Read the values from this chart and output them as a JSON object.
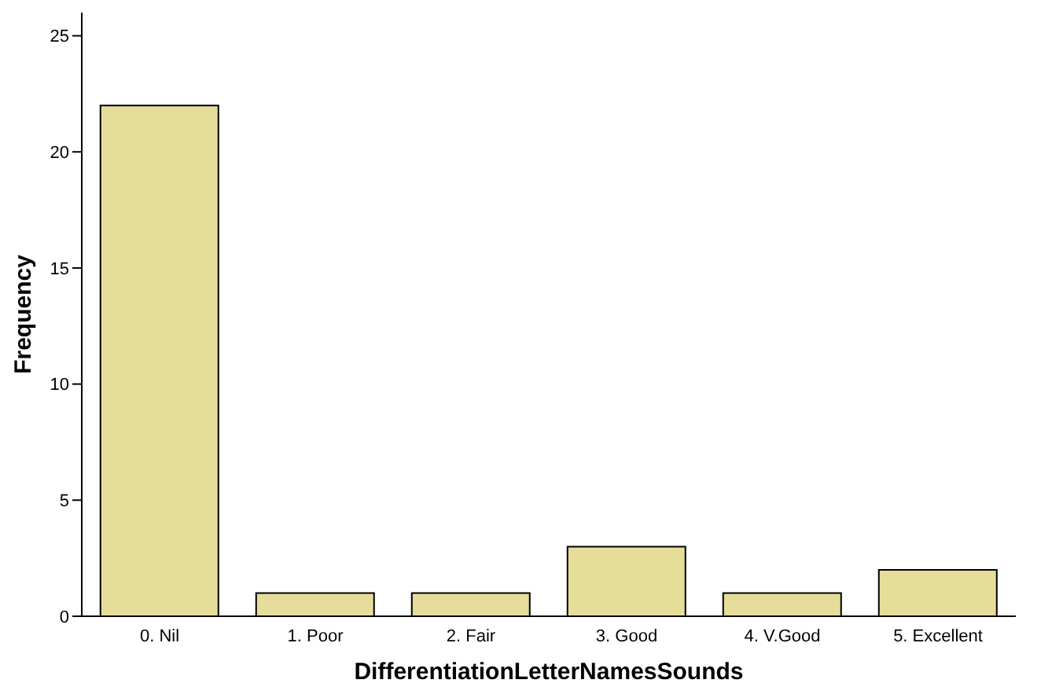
{
  "chart_data": {
    "type": "bar",
    "xlabel": "DifferentiationLetterNamesSounds",
    "ylabel": "Frequency",
    "categories": [
      "0. Nil",
      "1. Poor",
      "2. Fair",
      "3. Good",
      "4. V.Good",
      "5. Excellent"
    ],
    "values": [
      22,
      1,
      1,
      3,
      1,
      2
    ],
    "color": "#e6dd9a",
    "ylim": [
      0,
      26
    ],
    "yticks": [
      0,
      5,
      10,
      15,
      20,
      25
    ],
    "grid": false
  }
}
